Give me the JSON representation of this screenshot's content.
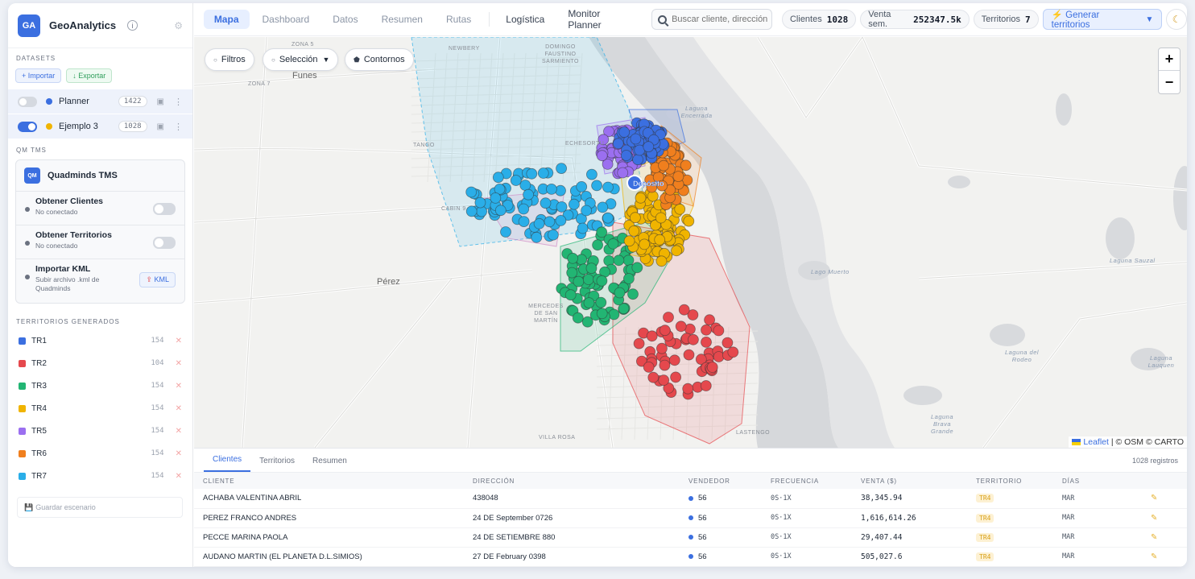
{
  "app": {
    "logo": "GA",
    "name": "GeoAnalytics",
    "info_icon": "info-icon",
    "settings_icon": "gear-icon"
  },
  "sidebar": {
    "datasets_title": "DATASETS",
    "import_label": "+ Importar",
    "export_label": "↓ Exportar",
    "datasets": [
      {
        "name": "Planner",
        "count": "1422",
        "color": "#3b6fe0",
        "enabled": false
      },
      {
        "name": "Ejemplo 3",
        "count": "1028",
        "color": "#f0b400",
        "enabled": true
      }
    ],
    "qm_title": "QM TMS",
    "tms": {
      "logo": "QM",
      "title": "Quadminds TMS",
      "items": [
        {
          "title": "Obtener Clientes",
          "subtitle": "No conectado"
        },
        {
          "title": "Obtener Territorios",
          "subtitle": "No conectado"
        },
        {
          "title": "Importar KML",
          "subtitle": "Subir archivo .kml de Quadminds",
          "button": "KML"
        }
      ]
    },
    "territories_title": "TERRITORIOS GENERADOS",
    "territories": [
      {
        "name": "TR1",
        "count": "154",
        "color": "#3b6fe0"
      },
      {
        "name": "TR2",
        "count": "104",
        "color": "#e5484d"
      },
      {
        "name": "TR3",
        "count": "154",
        "color": "#22b573"
      },
      {
        "name": "TR4",
        "count": "154",
        "color": "#f0b400"
      },
      {
        "name": "TR5",
        "count": "154",
        "color": "#9b6ff0"
      },
      {
        "name": "TR6",
        "count": "154",
        "color": "#f07f1e"
      },
      {
        "name": "TR7",
        "count": "154",
        "color": "#2aaee8"
      }
    ],
    "save_scenario": "Guardar escenario"
  },
  "nav": {
    "tabs": [
      "Mapa",
      "Dashboard",
      "Datos",
      "Resumen",
      "Rutas"
    ],
    "extra_tabs": [
      "Logística",
      "Monitor Planner"
    ],
    "search_placeholder": "Buscar cliente, dirección",
    "stats": [
      {
        "label": "Clientes",
        "value": "1028"
      },
      {
        "label": "Venta sem.",
        "value": "252347.5k"
      },
      {
        "label": "Territorios",
        "value": "7"
      }
    ],
    "generate_label": "⚡ Generar territorios",
    "theme_icon": "moon-icon"
  },
  "map": {
    "filters_label": "Filtros",
    "selection_label": "Selección",
    "contours_label": "Contornos",
    "depot_label": "Depósito",
    "attribution_leaflet": "Leaflet",
    "attribution_rest": " | © OSM © CARTO",
    "labels": {
      "zona5": "ZONA 5",
      "zona7": "ZONA 7",
      "newbery": "NEWBERY",
      "fausto": "DOMINGO FAUSTINO SARMIENTO",
      "funes": "Funes",
      "echesortu": "ECHESORTU",
      "tango": "TANGO",
      "cabin9": "CABIN 9",
      "perez": "Pérez",
      "mercedes": "MERCEDES DE SAN MARTÍN",
      "villarosa": "VILLA ROSA",
      "lastengo": "LASTENGO",
      "encerrada": "Laguna Encerrada",
      "lagomuerto": "Lago Muerto",
      "sauzal": "Laguna Sauzal",
      "rodeo": "Laguna del Rodeo",
      "lauquen": "Laguna Lauquen",
      "brava": "Laguna Brava Grande"
    }
  },
  "bottom": {
    "tabs": [
      "Clientes",
      "Territorios",
      "Resumen"
    ],
    "record_count": "1028 registros",
    "columns": [
      "CLIENTE",
      "DIRECCIÓN",
      "VENDEDOR",
      "FRECUENCIA",
      "VENTA ($)",
      "TERRITORIO",
      "DÍAS"
    ],
    "rows": [
      {
        "cliente": "ACHABA VALENTINA ABRIL",
        "direccion": "438048",
        "vendedor": "56",
        "frecuencia": "0S·1X",
        "venta": "38,345.94",
        "territorio": "TR4",
        "dias": "MAR"
      },
      {
        "cliente": "PEREZ FRANCO ANDRES",
        "direccion": "24 DE September 0726",
        "vendedor": "56",
        "frecuencia": "0S·1X",
        "venta": "1,616,614.26",
        "territorio": "TR4",
        "dias": "MAR"
      },
      {
        "cliente": "PECCE MARINA PAOLA",
        "direccion": "24 DE SETIEMBRE 880",
        "vendedor": "56",
        "frecuencia": "0S·1X",
        "venta": "29,407.44",
        "territorio": "TR4",
        "dias": "MAR"
      },
      {
        "cliente": "AUDANO MARTIN (EL PLANETA D.L.SIMIOS)",
        "direccion": "27 DE February 0398",
        "vendedor": "56",
        "frecuencia": "0S·1X",
        "venta": "505,027.6",
        "territorio": "TR4",
        "dias": "MAR"
      }
    ]
  }
}
